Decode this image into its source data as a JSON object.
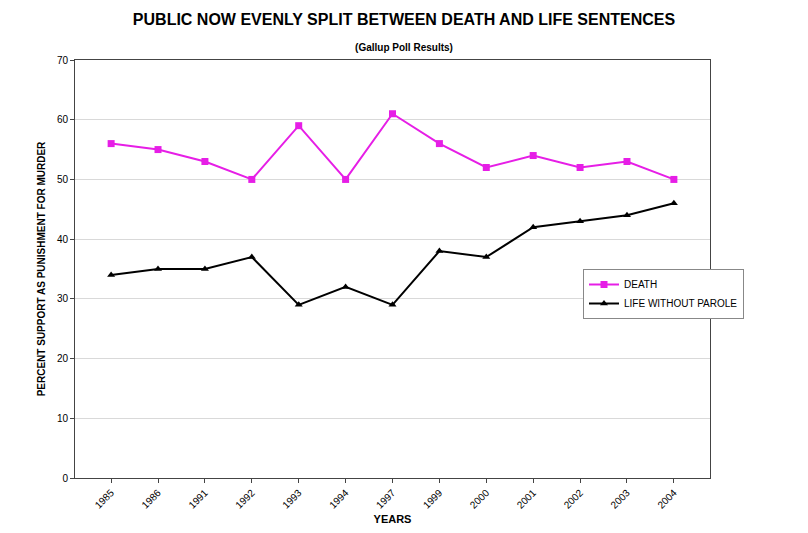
{
  "chart_data": {
    "type": "line",
    "title": "PUBLIC NOW EVENLY SPLIT BETWEEN DEATH AND LIFE SENTENCES",
    "subtitle": "(Gallup Poll Results)",
    "x_label": "YEARS",
    "y_label": "PERCENT SUPPORT AS PUNISHMENT FOR MURDER",
    "categories": [
      "1985",
      "1986",
      "1991",
      "1992",
      "1993",
      "1994",
      "1997",
      "1999",
      "2000",
      "2001",
      "2002",
      "2003",
      "2004"
    ],
    "series": [
      {
        "name": "DEATH",
        "color": "#e61ee6",
        "marker": "square",
        "line_style": "solid",
        "values": [
          56,
          55,
          53,
          50,
          59,
          50,
          61,
          56,
          52,
          54,
          52,
          53,
          50
        ]
      },
      {
        "name": "LIFE WITHOUT PAROLE",
        "color": "#000000",
        "marker": "triangle-up",
        "line_style": "solid",
        "values": [
          34,
          35,
          35,
          37,
          29,
          32,
          29,
          38,
          37,
          42,
          43,
          44,
          46
        ]
      }
    ],
    "ylim": [
      0,
      70
    ],
    "yticks": [
      0,
      10,
      20,
      30,
      40,
      50,
      60,
      70
    ],
    "grid": true,
    "legend": "right"
  }
}
